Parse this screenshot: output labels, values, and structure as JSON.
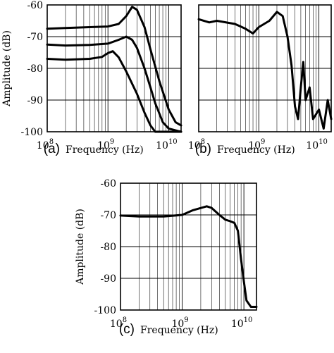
{
  "chart_data": [
    {
      "type": "line",
      "panel_label": "(a)",
      "xlabel": "Frequency (Hz)",
      "ylabel": "Amplitude (dB)",
      "x_scale": "log",
      "xlim": [
        100000000.0,
        16000000000.0
      ],
      "ylim": [
        -100,
        -60
      ],
      "yticks": [
        "-60",
        "-70",
        "-80",
        "-90",
        "-100"
      ],
      "xticks": [
        {
          "base": "10",
          "exp": "8",
          "value": 100000000.0
        },
        {
          "base": "10",
          "exp": "9",
          "value": 1000000000.0
        },
        {
          "base": "10",
          "exp": "10",
          "value": 10000000000.0
        }
      ],
      "grid": true,
      "series": [
        {
          "points": [
            [
              100000000.0,
              -67.5
            ],
            [
              200000000.0,
              -67.3
            ],
            [
              500000000.0,
              -67.0
            ],
            [
              1000000000.0,
              -66.8
            ],
            [
              1500000000.0,
              -66.0
            ],
            [
              2000000000.0,
              -63.5
            ],
            [
              2500000000.0,
              -60.6
            ],
            [
              3000000000.0,
              -61.5
            ],
            [
              4000000000.0,
              -67
            ],
            [
              5000000000.0,
              -74
            ],
            [
              7000000000.0,
              -84
            ],
            [
              10000000000.0,
              -93
            ],
            [
              13000000000.0,
              -97
            ],
            [
              16000000000.0,
              -98
            ]
          ]
        },
        {
          "points": [
            [
              100000000.0,
              -72.5
            ],
            [
              200000000.0,
              -72.8
            ],
            [
              500000000.0,
              -72.6
            ],
            [
              1000000000.0,
              -72.2
            ],
            [
              1500000000.0,
              -71.0
            ],
            [
              2000000000.0,
              -70.0
            ],
            [
              2500000000.0,
              -71.0
            ],
            [
              3000000000.0,
              -73.5
            ],
            [
              4000000000.0,
              -80
            ],
            [
              5000000000.0,
              -86
            ],
            [
              6000000000.0,
              -91
            ],
            [
              8000000000.0,
              -97
            ],
            [
              10000000000.0,
              -99
            ],
            [
              16000000000.0,
              -100
            ]
          ]
        },
        {
          "points": [
            [
              100000000.0,
              -77
            ],
            [
              200000000.0,
              -77.3
            ],
            [
              500000000.0,
              -77
            ],
            [
              800000000.0,
              -76.4
            ],
            [
              1000000000.0,
              -75.2
            ],
            [
              1200000000.0,
              -74.6
            ],
            [
              1500000000.0,
              -76.5
            ],
            [
              2000000000.0,
              -81
            ],
            [
              3000000000.0,
              -88
            ],
            [
              4000000000.0,
              -94
            ],
            [
              5000000000.0,
              -98
            ],
            [
              6000000000.0,
              -100
            ],
            [
              10000000000.0,
              -100
            ],
            [
              16000000000.0,
              -100
            ]
          ]
        }
      ]
    },
    {
      "type": "line",
      "panel_label": "(b)",
      "xlabel": "Frequency (Hz)",
      "ylabel": "",
      "x_scale": "log",
      "xlim": [
        100000000.0,
        16000000000.0
      ],
      "ylim": [
        -100,
        -60
      ],
      "xticks": [
        {
          "base": "10",
          "exp": "8",
          "value": 100000000.0
        },
        {
          "base": "10",
          "exp": "9",
          "value": 1000000000.0
        },
        {
          "base": "10",
          "exp": "10",
          "value": 10000000000.0
        }
      ],
      "grid": true,
      "series": [
        {
          "points": [
            [
              100000000.0,
              -64.5
            ],
            [
              150000000.0,
              -65.5
            ],
            [
              200000000.0,
              -65.0
            ],
            [
              400000000.0,
              -66.0
            ],
            [
              600000000.0,
              -67.5
            ],
            [
              800000000.0,
              -69.0
            ],
            [
              1000000000.0,
              -67.0
            ],
            [
              1500000000.0,
              -65.0
            ],
            [
              2000000000.0,
              -62.2
            ],
            [
              2500000000.0,
              -63.5
            ],
            [
              3000000000.0,
              -70
            ],
            [
              3500000000.0,
              -79
            ],
            [
              4000000000.0,
              -92
            ],
            [
              4500000000.0,
              -96
            ],
            [
              5000000000.0,
              -86
            ],
            [
              5500000000.0,
              -78
            ],
            [
              6000000000.0,
              -90
            ],
            [
              7000000000.0,
              -86
            ],
            [
              8000000000.0,
              -96
            ],
            [
              10000000000.0,
              -93
            ],
            [
              12000000000.0,
              -99
            ],
            [
              14000000000.0,
              -90
            ],
            [
              16000000000.0,
              -96
            ]
          ]
        }
      ]
    },
    {
      "type": "line",
      "panel_label": "(c)",
      "xlabel": "Frequency (Hz)",
      "ylabel": "Amplitude (dB)",
      "x_scale": "log",
      "xlim": [
        100000000.0,
        16000000000.0
      ],
      "ylim": [
        -100,
        -60
      ],
      "yticks": [
        "-60",
        "-70",
        "-80",
        "-90",
        "-100"
      ],
      "xticks": [
        {
          "base": "10",
          "exp": "8",
          "value": 100000000.0
        },
        {
          "base": "10",
          "exp": "9",
          "value": 1000000000.0
        },
        {
          "base": "10",
          "exp": "10",
          "value": 10000000000.0
        }
      ],
      "grid": true,
      "series": [
        {
          "points": [
            [
              100000000.0,
              -70.2
            ],
            [
              200000000.0,
              -70.5
            ],
            [
              500000000.0,
              -70.5
            ],
            [
              1000000000.0,
              -70.0
            ],
            [
              1500000000.0,
              -68.5
            ],
            [
              2500000000.0,
              -67.3
            ],
            [
              3000000000.0,
              -67.8
            ],
            [
              4000000000.0,
              -70
            ],
            [
              5000000000.0,
              -71.5
            ],
            [
              6000000000.0,
              -72
            ],
            [
              7000000000.0,
              -72.5
            ],
            [
              8000000000.0,
              -75
            ],
            [
              9000000000.0,
              -84
            ],
            [
              10000000000.0,
              -91
            ],
            [
              11000000000.0,
              -97
            ],
            [
              13000000000.0,
              -99
            ],
            [
              16000000000.0,
              -99
            ]
          ]
        }
      ]
    }
  ]
}
